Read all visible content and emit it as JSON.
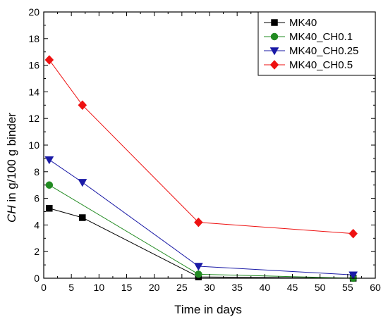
{
  "chart_data": {
    "type": "line",
    "title": "",
    "xlabel": "Time in days",
    "ylabel_italic": "CH",
    "ylabel_rest": " in g/100 g binder",
    "xlim": [
      0,
      60
    ],
    "ylim": [
      0,
      20
    ],
    "xticks": [
      "0",
      "5",
      "10",
      "15",
      "20",
      "25",
      "30",
      "35",
      "40",
      "45",
      "50",
      "55",
      "60"
    ],
    "yticks": [
      "0",
      "2",
      "4",
      "6",
      "8",
      "10",
      "12",
      "14",
      "16",
      "18",
      "20"
    ],
    "legend_position": "top-right",
    "grid": false,
    "series": [
      {
        "name": "MK40",
        "color": "#000000",
        "marker": "square",
        "x": [
          1,
          7,
          28,
          56
        ],
        "y": [
          5.25,
          4.55,
          0.1,
          0.0
        ]
      },
      {
        "name": "MK40_CH0.1",
        "color": "#228B22",
        "marker": "circle",
        "x": [
          1,
          28,
          56
        ],
        "y": [
          7.0,
          0.3,
          0.0
        ]
      },
      {
        "name": "MK40_CH0.25",
        "color": "#1a1aa6",
        "marker": "triangle-down",
        "x": [
          1,
          7,
          28,
          56
        ],
        "y": [
          8.9,
          7.2,
          0.9,
          0.25
        ]
      },
      {
        "name": "MK40_CH0.5",
        "color": "#ee1111",
        "marker": "diamond",
        "x": [
          1,
          7,
          28,
          56
        ],
        "y": [
          16.4,
          13.0,
          4.2,
          3.35
        ]
      }
    ]
  }
}
